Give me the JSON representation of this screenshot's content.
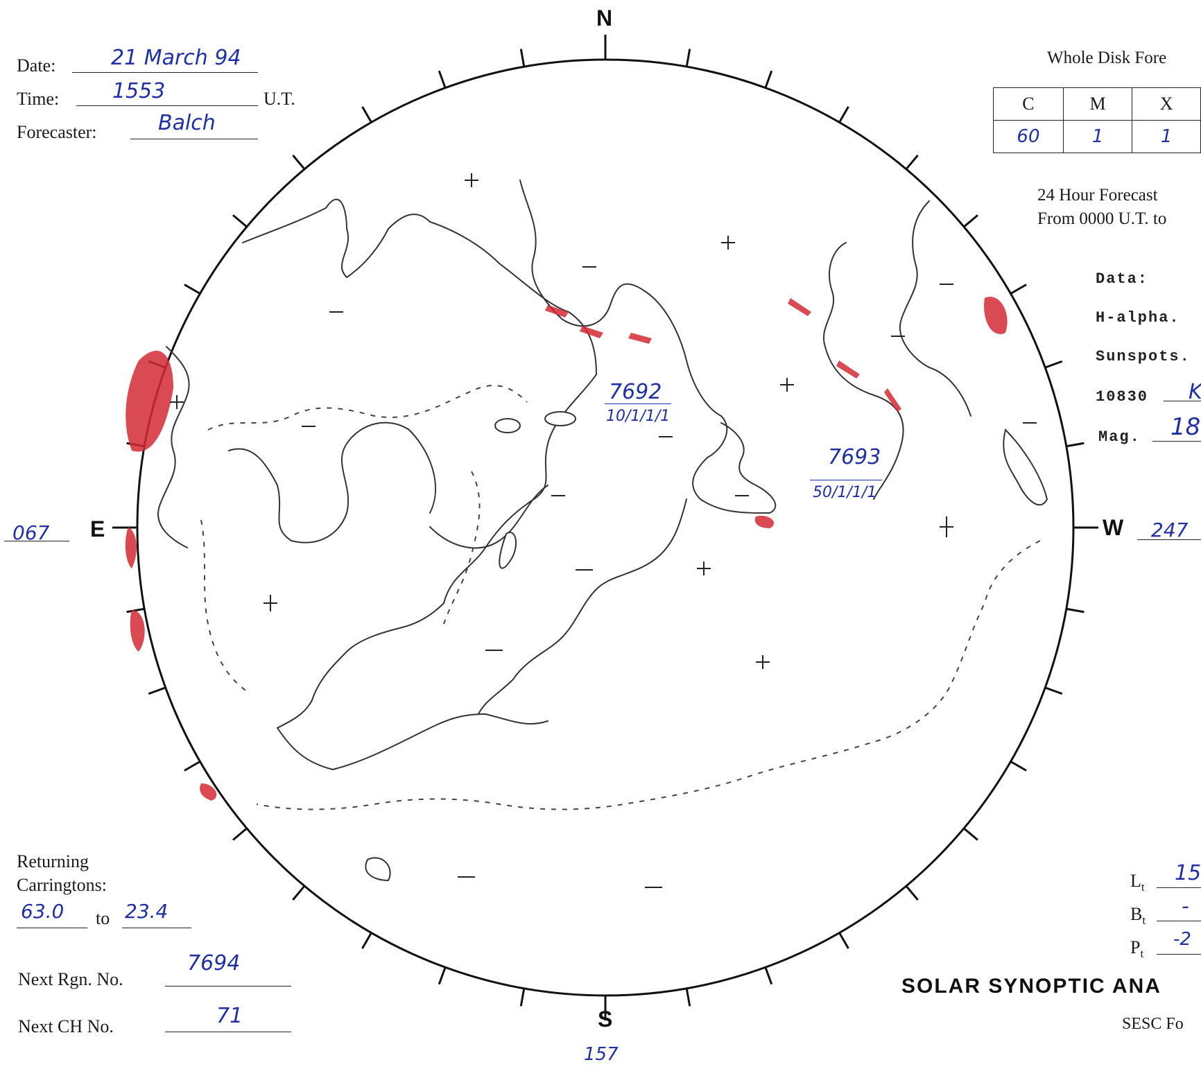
{
  "header": {
    "date_label": "Date:",
    "date_value": "21 March 94",
    "time_label": "Time:",
    "time_value": "1553",
    "time_unit": "U.T.",
    "forecaster_label": "Forecaster:",
    "forecaster_value": "Balch"
  },
  "forecast": {
    "title": "Whole Disk Fore",
    "columns": [
      "C",
      "M",
      "X"
    ],
    "values": [
      "60",
      "1",
      "1"
    ],
    "period_line1": "24 Hour Forecast",
    "period_line2": "From 0000 U.T. to"
  },
  "data_section": {
    "heading": "Data:",
    "halpha_label": "H-alpha.",
    "sunspots_label": "Sunspots.",
    "he10830_label": "10830",
    "he10830_value": "K",
    "mag_label": "Mag.",
    "mag_value": "18"
  },
  "compass": {
    "north": "N",
    "south": "S",
    "east": "E",
    "west": "W",
    "east_value": "067",
    "west_value": "247",
    "south_value": "157"
  },
  "regions": [
    {
      "number": "7692",
      "class": "10/1/1/1"
    },
    {
      "number": "7693",
      "class": "50/1/1/1"
    }
  ],
  "returning": {
    "label_line1": "Returning",
    "label_line2": "Carringtons:",
    "from_value": "63.0",
    "to_label": "to",
    "to_value": "23.4"
  },
  "next_numbers": {
    "rgn_label": "Next Rgn. No.",
    "rgn_value": "7694",
    "ch_label": "Next CH No.",
    "ch_value": "71"
  },
  "parameters": {
    "lt_label": "L",
    "lt_sub": "t",
    "lt_value": "15",
    "bt_label": "B",
    "bt_sub": "t",
    "bt_value": "-",
    "pt_label": "P",
    "pt_sub": "t",
    "pt_value": "-2"
  },
  "footer": {
    "title": "SOLAR SYNOPTIC ANA",
    "subtitle": "SESC Fo"
  },
  "colors": {
    "ink": "#1a1a1a",
    "handwriting": "#1f2fa8",
    "plage_red": "#d42a35"
  }
}
